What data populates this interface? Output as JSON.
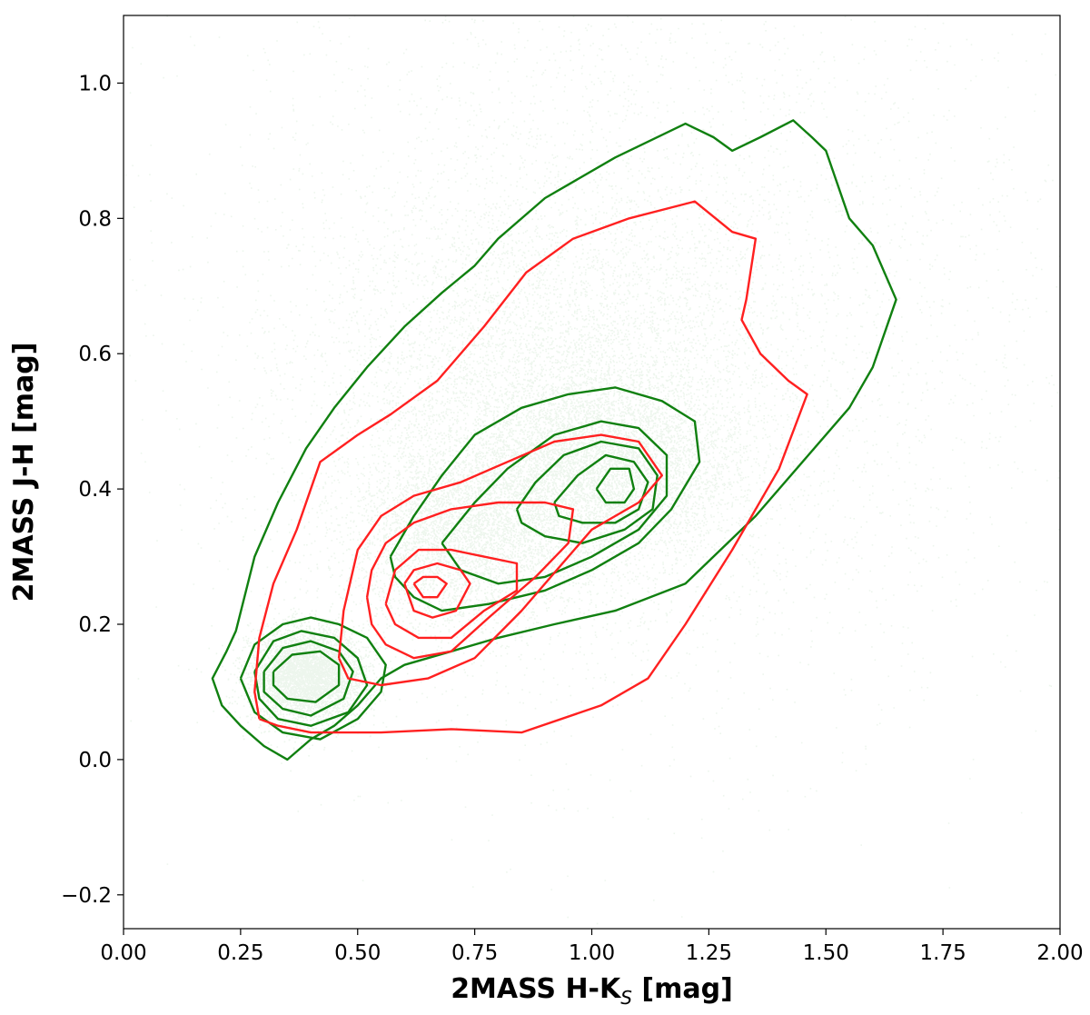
{
  "chart_data": {
    "type": "scatter",
    "title": "",
    "xlabel": "2MASS H-K",
    "xlabel_sub": "S",
    "xlabel_unit": " [mag]",
    "ylabel": "2MASS J-H [mag]",
    "xlim": [
      0.0,
      2.0
    ],
    "ylim": [
      -0.25,
      1.1
    ],
    "x_ticks": [
      "0.00",
      "0.25",
      "0.50",
      "0.75",
      "1.00",
      "1.25",
      "1.50",
      "1.75",
      "2.00"
    ],
    "y_ticks": [
      "−0.2",
      "0.0",
      "0.2",
      "0.4",
      "0.6",
      "0.8",
      "1.0"
    ],
    "x_tick_values": [
      0.0,
      0.25,
      0.5,
      0.75,
      1.0,
      1.25,
      1.5,
      1.75,
      2.0
    ],
    "y_tick_values": [
      -0.2,
      0.0,
      0.2,
      0.4,
      0.6,
      0.8,
      1.0
    ],
    "grid": false,
    "legend": "none",
    "colors": {
      "points": "#008000",
      "green_contours": "#108010",
      "red_contours": "#ff2020"
    },
    "point_clusters": [
      {
        "x": 0.39,
        "y": 0.125,
        "sx": 0.06,
        "sy": 0.035,
        "n": 5000
      },
      {
        "x": 1.02,
        "y": 0.43,
        "sx": 0.14,
        "sy": 0.07,
        "n": 8000
      },
      {
        "x": 0.72,
        "y": 0.33,
        "sx": 0.12,
        "sy": 0.07,
        "n": 4000
      },
      {
        "x": 0.9,
        "y": 0.55,
        "sx": 0.25,
        "sy": 0.15,
        "n": 7000
      },
      {
        "x": 1.1,
        "y": 0.65,
        "sx": 0.45,
        "sy": 0.3,
        "n": 5000
      }
    ],
    "series": [
      {
        "color": "green",
        "points": [
          [
            0.24,
            0.19
          ],
          [
            0.28,
            0.3
          ],
          [
            0.33,
            0.38
          ],
          [
            0.39,
            0.46
          ],
          [
            0.45,
            0.52
          ],
          [
            0.52,
            0.58
          ],
          [
            0.6,
            0.64
          ],
          [
            0.68,
            0.69
          ],
          [
            0.75,
            0.73
          ],
          [
            0.8,
            0.77
          ],
          [
            0.9,
            0.83
          ],
          [
            1.05,
            0.89
          ],
          [
            1.2,
            0.94
          ],
          [
            1.26,
            0.92
          ],
          [
            1.3,
            0.9
          ],
          [
            1.36,
            0.92
          ],
          [
            1.43,
            0.945
          ],
          [
            1.47,
            0.92
          ],
          [
            1.5,
            0.9
          ],
          [
            1.55,
            0.8
          ],
          [
            1.6,
            0.76
          ],
          [
            1.65,
            0.68
          ],
          [
            1.6,
            0.58
          ],
          [
            1.55,
            0.52
          ],
          [
            1.45,
            0.44
          ],
          [
            1.35,
            0.36
          ],
          [
            1.2,
            0.26
          ],
          [
            1.05,
            0.22
          ],
          [
            0.92,
            0.2
          ],
          [
            0.8,
            0.18
          ],
          [
            0.7,
            0.16
          ],
          [
            0.6,
            0.14
          ],
          [
            0.55,
            0.12
          ],
          [
            0.5,
            0.08
          ],
          [
            0.45,
            0.05
          ],
          [
            0.4,
            0.03
          ],
          [
            0.35,
            0.0
          ],
          [
            0.3,
            0.02
          ],
          [
            0.25,
            0.05
          ],
          [
            0.21,
            0.08
          ],
          [
            0.19,
            0.12
          ],
          [
            0.22,
            0.16
          ],
          [
            0.24,
            0.19
          ]
        ]
      },
      {
        "color": "green",
        "points": [
          [
            0.25,
            0.12
          ],
          [
            0.28,
            0.17
          ],
          [
            0.34,
            0.2
          ],
          [
            0.4,
            0.21
          ],
          [
            0.46,
            0.2
          ],
          [
            0.52,
            0.18
          ],
          [
            0.56,
            0.14
          ],
          [
            0.55,
            0.1
          ],
          [
            0.5,
            0.06
          ],
          [
            0.42,
            0.03
          ],
          [
            0.34,
            0.04
          ],
          [
            0.28,
            0.07
          ],
          [
            0.25,
            0.12
          ]
        ]
      },
      {
        "color": "green",
        "points": [
          [
            0.28,
            0.13
          ],
          [
            0.32,
            0.175
          ],
          [
            0.38,
            0.19
          ],
          [
            0.45,
            0.18
          ],
          [
            0.5,
            0.15
          ],
          [
            0.52,
            0.11
          ],
          [
            0.48,
            0.07
          ],
          [
            0.4,
            0.05
          ],
          [
            0.33,
            0.06
          ],
          [
            0.29,
            0.09
          ],
          [
            0.28,
            0.13
          ]
        ]
      },
      {
        "color": "green",
        "points": [
          [
            0.3,
            0.13
          ],
          [
            0.34,
            0.165
          ],
          [
            0.4,
            0.175
          ],
          [
            0.46,
            0.16
          ],
          [
            0.49,
            0.13
          ],
          [
            0.47,
            0.09
          ],
          [
            0.4,
            0.065
          ],
          [
            0.34,
            0.075
          ],
          [
            0.3,
            0.1
          ],
          [
            0.3,
            0.13
          ]
        ]
      },
      {
        "color": "green",
        "points": [
          [
            0.32,
            0.13
          ],
          [
            0.36,
            0.155
          ],
          [
            0.42,
            0.16
          ],
          [
            0.46,
            0.14
          ],
          [
            0.46,
            0.11
          ],
          [
            0.41,
            0.085
          ],
          [
            0.35,
            0.09
          ],
          [
            0.32,
            0.11
          ],
          [
            0.32,
            0.13
          ]
        ]
      },
      {
        "color": "green",
        "points": [
          [
            0.57,
            0.3
          ],
          [
            0.62,
            0.36
          ],
          [
            0.68,
            0.42
          ],
          [
            0.75,
            0.48
          ],
          [
            0.85,
            0.52
          ],
          [
            0.95,
            0.54
          ],
          [
            1.05,
            0.55
          ],
          [
            1.15,
            0.53
          ],
          [
            1.22,
            0.5
          ],
          [
            1.23,
            0.44
          ],
          [
            1.17,
            0.37
          ],
          [
            1.1,
            0.32
          ],
          [
            1.0,
            0.28
          ],
          [
            0.9,
            0.25
          ],
          [
            0.78,
            0.23
          ],
          [
            0.68,
            0.22
          ],
          [
            0.62,
            0.24
          ],
          [
            0.58,
            0.27
          ],
          [
            0.57,
            0.3
          ]
        ]
      },
      {
        "color": "green",
        "points": [
          [
            0.68,
            0.32
          ],
          [
            0.75,
            0.38
          ],
          [
            0.82,
            0.43
          ],
          [
            0.92,
            0.48
          ],
          [
            1.02,
            0.5
          ],
          [
            1.1,
            0.49
          ],
          [
            1.16,
            0.45
          ],
          [
            1.16,
            0.39
          ],
          [
            1.1,
            0.34
          ],
          [
            1.0,
            0.3
          ],
          [
            0.9,
            0.27
          ],
          [
            0.8,
            0.26
          ],
          [
            0.72,
            0.28
          ],
          [
            0.68,
            0.32
          ]
        ]
      },
      {
        "color": "green",
        "points": [
          [
            0.84,
            0.37
          ],
          [
            0.88,
            0.41
          ],
          [
            0.94,
            0.45
          ],
          [
            1.02,
            0.47
          ],
          [
            1.1,
            0.46
          ],
          [
            1.14,
            0.42
          ],
          [
            1.13,
            0.37
          ],
          [
            1.07,
            0.34
          ],
          [
            0.98,
            0.32
          ],
          [
            0.9,
            0.33
          ],
          [
            0.85,
            0.35
          ],
          [
            0.84,
            0.37
          ]
        ]
      },
      {
        "color": "green",
        "points": [
          [
            0.92,
            0.38
          ],
          [
            0.97,
            0.42
          ],
          [
            1.03,
            0.45
          ],
          [
            1.09,
            0.44
          ],
          [
            1.12,
            0.41
          ],
          [
            1.1,
            0.37
          ],
          [
            1.05,
            0.35
          ],
          [
            0.98,
            0.35
          ],
          [
            0.93,
            0.36
          ],
          [
            0.92,
            0.38
          ]
        ]
      },
      {
        "color": "green",
        "points": [
          [
            1.01,
            0.4
          ],
          [
            1.04,
            0.43
          ],
          [
            1.08,
            0.43
          ],
          [
            1.09,
            0.4
          ],
          [
            1.07,
            0.38
          ],
          [
            1.03,
            0.38
          ],
          [
            1.01,
            0.4
          ]
        ]
      },
      {
        "color": "red",
        "points": [
          [
            0.29,
            0.06
          ],
          [
            0.28,
            0.1
          ],
          [
            0.29,
            0.18
          ],
          [
            0.32,
            0.26
          ],
          [
            0.37,
            0.34
          ],
          [
            0.42,
            0.44
          ],
          [
            0.5,
            0.48
          ],
          [
            0.57,
            0.51
          ],
          [
            0.67,
            0.56
          ],
          [
            0.77,
            0.64
          ],
          [
            0.86,
            0.72
          ],
          [
            0.96,
            0.77
          ],
          [
            1.08,
            0.8
          ],
          [
            1.22,
            0.825
          ],
          [
            1.3,
            0.78
          ],
          [
            1.35,
            0.77
          ],
          [
            1.33,
            0.68
          ],
          [
            1.32,
            0.65
          ],
          [
            1.36,
            0.6
          ],
          [
            1.42,
            0.56
          ],
          [
            1.46,
            0.54
          ],
          [
            1.4,
            0.43
          ],
          [
            1.3,
            0.31
          ],
          [
            1.2,
            0.2
          ],
          [
            1.12,
            0.12
          ],
          [
            1.02,
            0.08
          ],
          [
            0.85,
            0.04
          ],
          [
            0.7,
            0.045
          ],
          [
            0.55,
            0.04
          ],
          [
            0.4,
            0.04
          ],
          [
            0.33,
            0.05
          ],
          [
            0.29,
            0.06
          ]
        ]
      },
      {
        "color": "red",
        "points": [
          [
            0.46,
            0.15
          ],
          [
            0.47,
            0.22
          ],
          [
            0.5,
            0.31
          ],
          [
            0.55,
            0.36
          ],
          [
            0.62,
            0.39
          ],
          [
            0.72,
            0.41
          ],
          [
            0.82,
            0.44
          ],
          [
            0.92,
            0.47
          ],
          [
            1.02,
            0.48
          ],
          [
            1.1,
            0.47
          ],
          [
            1.15,
            0.42
          ],
          [
            1.1,
            0.38
          ],
          [
            1.0,
            0.34
          ],
          [
            0.95,
            0.3
          ],
          [
            0.85,
            0.22
          ],
          [
            0.75,
            0.15
          ],
          [
            0.65,
            0.12
          ],
          [
            0.55,
            0.11
          ],
          [
            0.48,
            0.12
          ],
          [
            0.46,
            0.15
          ]
        ]
      },
      {
        "color": "red",
        "points": [
          [
            0.52,
            0.24
          ],
          [
            0.53,
            0.28
          ],
          [
            0.56,
            0.32
          ],
          [
            0.62,
            0.35
          ],
          [
            0.7,
            0.37
          ],
          [
            0.8,
            0.38
          ],
          [
            0.9,
            0.38
          ],
          [
            0.96,
            0.37
          ],
          [
            0.95,
            0.32
          ],
          [
            0.88,
            0.27
          ],
          [
            0.78,
            0.21
          ],
          [
            0.7,
            0.16
          ],
          [
            0.62,
            0.15
          ],
          [
            0.56,
            0.17
          ],
          [
            0.53,
            0.2
          ],
          [
            0.52,
            0.24
          ]
        ]
      },
      {
        "color": "red",
        "points": [
          [
            0.56,
            0.23
          ],
          [
            0.58,
            0.28
          ],
          [
            0.63,
            0.31
          ],
          [
            0.7,
            0.31
          ],
          [
            0.77,
            0.3
          ],
          [
            0.84,
            0.29
          ],
          [
            0.84,
            0.25
          ],
          [
            0.77,
            0.22
          ],
          [
            0.7,
            0.18
          ],
          [
            0.63,
            0.18
          ],
          [
            0.58,
            0.2
          ],
          [
            0.56,
            0.23
          ]
        ]
      },
      {
        "color": "red",
        "points": [
          [
            0.6,
            0.26
          ],
          [
            0.62,
            0.28
          ],
          [
            0.67,
            0.29
          ],
          [
            0.72,
            0.28
          ],
          [
            0.74,
            0.26
          ],
          [
            0.71,
            0.22
          ],
          [
            0.66,
            0.21
          ],
          [
            0.62,
            0.22
          ],
          [
            0.6,
            0.26
          ]
        ]
      },
      {
        "color": "red",
        "points": [
          [
            0.62,
            0.26
          ],
          [
            0.64,
            0.27
          ],
          [
            0.67,
            0.27
          ],
          [
            0.69,
            0.26
          ],
          [
            0.67,
            0.24
          ],
          [
            0.64,
            0.24
          ],
          [
            0.62,
            0.26
          ]
        ]
      }
    ]
  }
}
